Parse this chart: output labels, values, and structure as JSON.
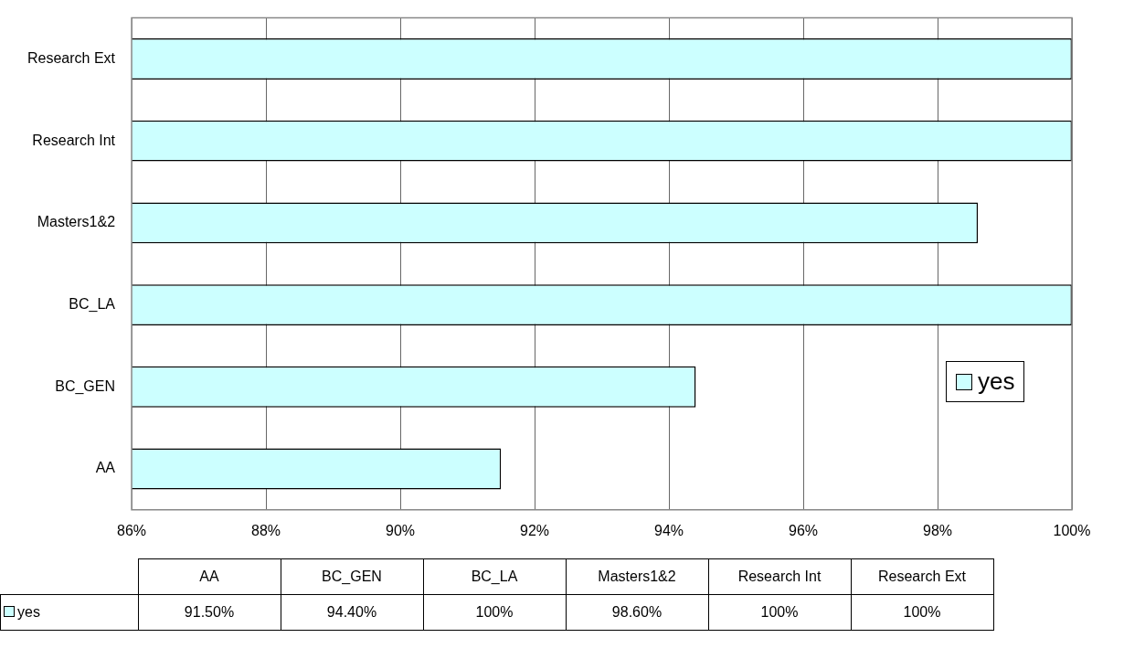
{
  "chart_data": {
    "type": "bar",
    "orientation": "horizontal",
    "categories": [
      "Research Ext",
      "Research Int",
      "Masters1&2",
      "BC_LA",
      "BC_GEN",
      "AA"
    ],
    "series": [
      {
        "name": "yes",
        "color": "#ccffff",
        "values": [
          100,
          100,
          98.6,
          100,
          94.4,
          91.5
        ]
      }
    ],
    "annotations": [
      "91.50%",
      "94.40%",
      "100%",
      "98.60%",
      "100%",
      "100%"
    ],
    "xlim": [
      86,
      100
    ],
    "xticks": [
      {
        "value": 86,
        "label": "86%"
      },
      {
        "value": 88,
        "label": "88%"
      },
      {
        "value": 90,
        "label": "90%"
      },
      {
        "value": 92,
        "label": "92%"
      },
      {
        "value": 94,
        "label": "94%"
      },
      {
        "value": 96,
        "label": "96%"
      },
      {
        "value": 98,
        "label": "98%"
      },
      {
        "value": 100,
        "label": "100%"
      }
    ],
    "grid": "x",
    "legend": "right"
  }
}
